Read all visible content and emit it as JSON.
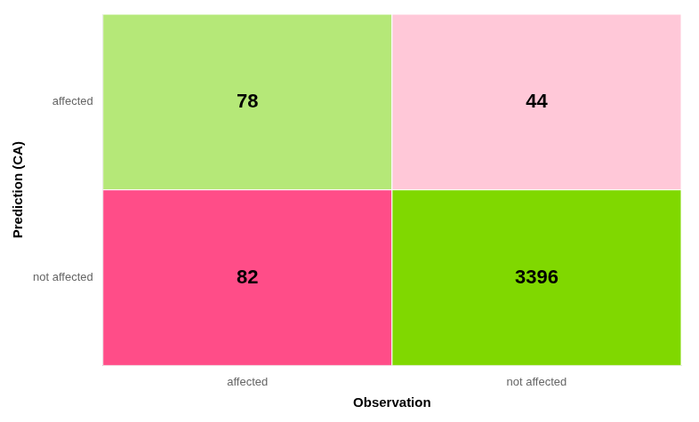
{
  "chart_data": {
    "type": "heatmap",
    "x": [
      "affected",
      "not affected"
    ],
    "y": [
      "affected",
      "not affected"
    ],
    "cells": [
      [
        78,
        44
      ],
      [
        82,
        3396
      ]
    ],
    "colors": [
      [
        "#b5e878",
        "#ffc8d8"
      ],
      [
        "#ff4d88",
        "#80d800"
      ]
    ],
    "xlabel": "Observation",
    "ylabel": "Prediction (CA)",
    "data_labels": true,
    "grid": false
  }
}
